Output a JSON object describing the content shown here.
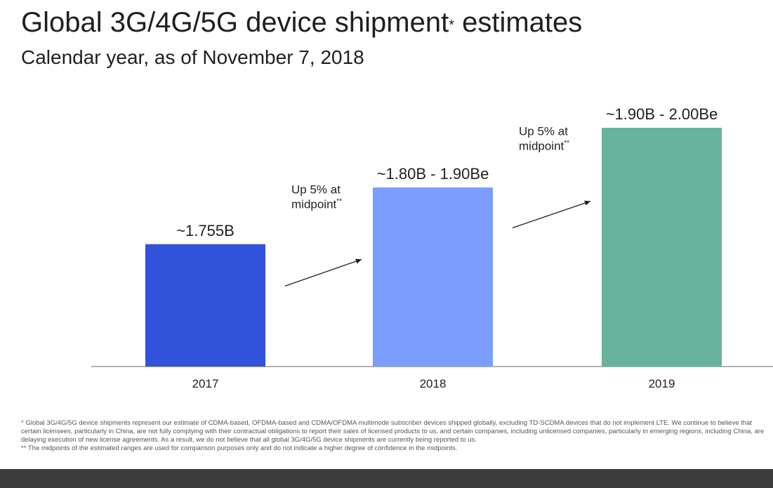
{
  "title": {
    "main": "Global 3G/4G/5G device shipment",
    "mark": "*",
    "tail": " estimates"
  },
  "subtitle": "Calendar year, as of November 7, 2018",
  "chart_data": {
    "type": "bar",
    "categories": [
      "2017",
      "2018",
      "2019"
    ],
    "values": [
      1.755,
      1.85,
      1.95
    ],
    "value_labels": [
      "~1.755B",
      "~1.80B - 1.90Be",
      "~1.90B - 2.00Be"
    ],
    "colors": [
      "#3152db",
      "#7b9dfe",
      "#67b39b"
    ],
    "annotations": [
      {
        "line1": "Up 5% at",
        "line2": "midpoint",
        "mark": "**",
        "between": [
          "2017",
          "2018"
        ]
      },
      {
        "line1": "Up 5% at",
        "line2": "midpoint",
        "mark": "**",
        "between": [
          "2018",
          "2019"
        ]
      }
    ],
    "grid": false,
    "legend": "none"
  },
  "footnotes": [
    "* Global 3G/4G/5G device shipments represent our estimate of CDMA-based, OFDMA-based and CDMA/OFDMA multimode subscriber devices shipped globally, excluding TD-SCDMA devices that do not implement LTE. We continue to believe that certain licensees, particularly in China, are not fully complying with their contractual obligations to report their sales of licensed products to us, and certain companies, including unlicensed companies, particularly in emerging regions, including China, are delaying execution of new license agreements. As a result, we do not believe that all global 3G/4G/5G device shipments are currently being reported to us.",
    "** The midpoints of the estimated ranges are used for comparison purposes only and do not indicate a higher degree of confidence in the midpoints."
  ]
}
